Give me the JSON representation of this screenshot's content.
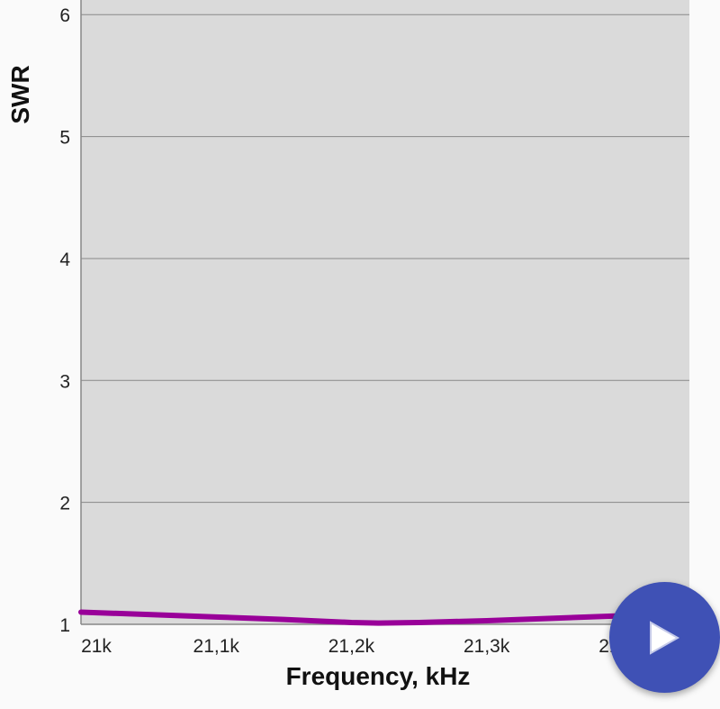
{
  "chart_data": {
    "type": "line",
    "xlabel": "Frequency, kHz",
    "ylabel": "SWR",
    "xlim": [
      21000,
      21450
    ],
    "ylim": [
      1,
      6.12
    ],
    "x_ticks": [
      21000,
      21100,
      21200,
      21300,
      21400
    ],
    "x_tick_labels": [
      "21k",
      "21,1k",
      "21,2k",
      "21,3k",
      "21,4k"
    ],
    "y_ticks": [
      1,
      2,
      3,
      4,
      5,
      6
    ],
    "y_tick_labels": [
      "1",
      "2",
      "3",
      "4",
      "5",
      "6"
    ],
    "grid": true,
    "series": [
      {
        "color": "#990099",
        "x": [
          21000,
          21050,
          21100,
          21150,
          21200,
          21220,
          21250,
          21300,
          21350,
          21400,
          21450
        ],
        "y": [
          1.1,
          1.08,
          1.06,
          1.04,
          1.015,
          1.01,
          1.015,
          1.03,
          1.05,
          1.07,
          1.09
        ]
      }
    ],
    "plot_background": "#dadada"
  },
  "fab": {
    "icon": "play-icon",
    "color": "#3f51b5"
  }
}
